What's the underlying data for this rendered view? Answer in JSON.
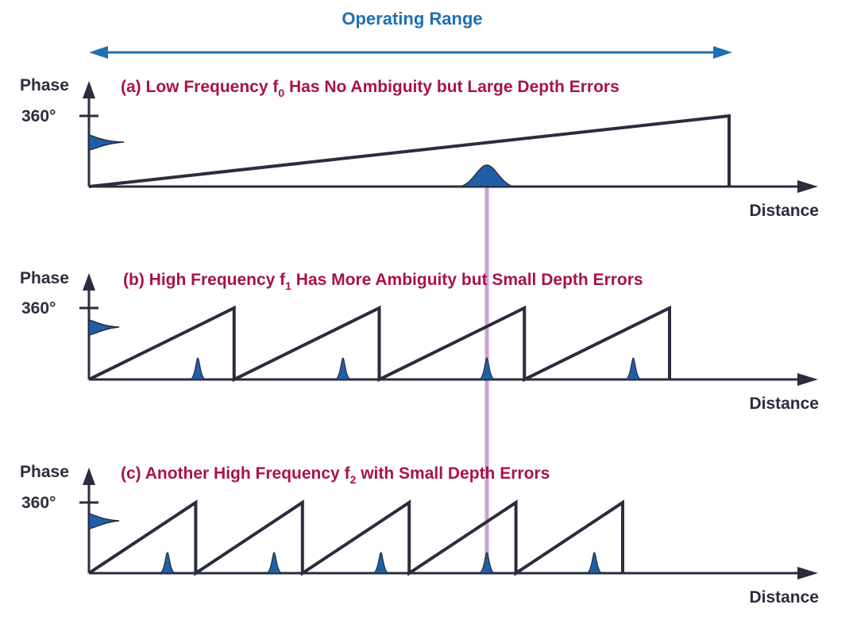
{
  "operating_range": {
    "label": "Operating Range"
  },
  "colors": {
    "axis": "#2a2d3e",
    "waveform": "#2a2d3e",
    "peak_fill": "#1f5fa8",
    "range_arrow": "#1f6fb2",
    "title": "#a8124a",
    "guide_line": "#c9a2d4"
  },
  "panels": [
    {
      "id": "a",
      "title_pre": "(a) Low Frequency f",
      "title_sub": "0",
      "title_post": " Has No Ambiguity but Large Depth Errors",
      "phase_label": "Phase",
      "tick_label": "360°",
      "x_label": "Distance",
      "cycles": 1,
      "peak_size": "wide"
    },
    {
      "id": "b",
      "title_pre": "(b) High Frequency f",
      "title_sub": "1",
      "title_post": " Has More Ambiguity but Small Depth Errors",
      "phase_label": "Phase",
      "tick_label": "360°",
      "x_label": "Distance",
      "cycles": 4,
      "peak_size": "narrow"
    },
    {
      "id": "c",
      "title_pre": "(c) Another High Frequency f",
      "title_sub": "2",
      "title_post": " with Small Depth Errors",
      "phase_label": "Phase",
      "tick_label": "360°",
      "x_label": "Distance",
      "cycles": 5,
      "peak_size": "narrow"
    }
  ]
}
